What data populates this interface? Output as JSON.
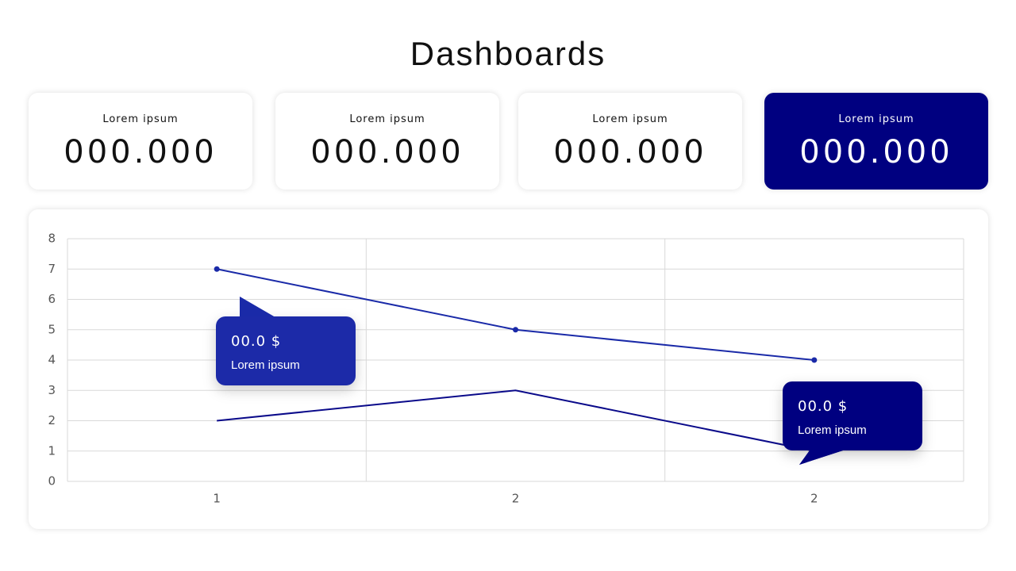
{
  "header": {
    "title": "Dashboards"
  },
  "cards": [
    {
      "label": "Lorem ipsum",
      "value": "000.000"
    },
    {
      "label": "Lorem ipsum",
      "value": "000.000"
    },
    {
      "label": "Lorem ipsum",
      "value": "000.000"
    },
    {
      "label": "Lorem ipsum",
      "value": "000.000"
    }
  ],
  "chart_data": {
    "type": "line",
    "categories": [
      "1",
      "2",
      "2"
    ],
    "series": [
      {
        "color": "#1a2aa8",
        "marker": true,
        "values": [
          7,
          5,
          4
        ]
      },
      {
        "color": "#0a0a8a",
        "marker": false,
        "values": [
          2,
          3,
          1
        ]
      }
    ],
    "ylim": [
      0,
      8
    ],
    "yticks": [
      0,
      1,
      2,
      3,
      4,
      5,
      6,
      7,
      8
    ],
    "grid": true,
    "annotations": [
      {
        "text": "00.0 $",
        "subtext": "Lorem ipsum",
        "color": "#1a2aa8"
      },
      {
        "text": "00.0 $",
        "subtext": "Lorem ipsum",
        "color": "#000080"
      }
    ]
  }
}
